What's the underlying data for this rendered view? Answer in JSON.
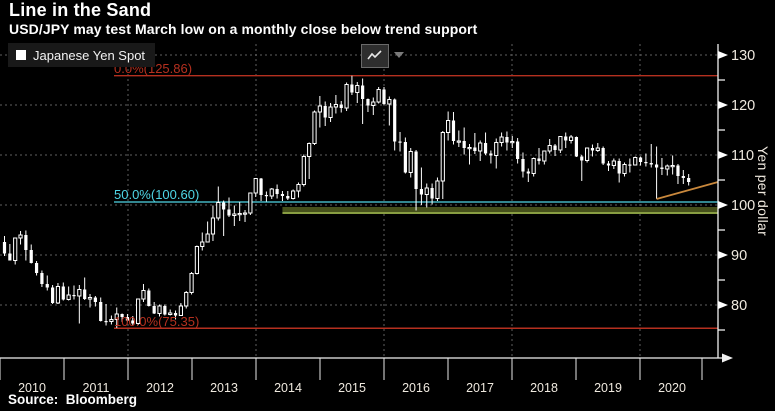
{
  "header": {
    "title": "Line in the Sand",
    "subtitle": "USD/JPY may test March low on a monthly close below trend support"
  },
  "legend": {
    "series_label": "Japanese Yen Spot",
    "swatch_color": "#ffffff"
  },
  "toolbar": {
    "chart_type_icon": "line-chart-icon",
    "dropdown_icon": "caret-down-icon"
  },
  "source": {
    "label": "Source:  Bloomberg"
  },
  "y_axis": {
    "title": "Yen per dollar",
    "major_ticks": [
      130,
      120,
      110,
      100,
      90,
      80
    ],
    "minor_ticks": [
      125,
      115,
      105,
      95,
      85,
      75
    ],
    "range": [
      70,
      132
    ]
  },
  "x_axis": {
    "years": [
      "2010",
      "2011",
      "2012",
      "2013",
      "2014",
      "2015",
      "2016",
      "2017",
      "2018",
      "2019",
      "2020"
    ],
    "grid_every_years": 2
  },
  "chart_data": {
    "type": "candlestick",
    "title": "Line in the Sand",
    "series_name": "Japanese Yen Spot",
    "x_unit": "month",
    "start_month": "2010-01",
    "end_month": "2020-09",
    "ylabel": "Yen per dollar",
    "ylim": [
      70,
      132
    ],
    "grid": true,
    "colors": {
      "candle": "#ffffff",
      "background": "#000000",
      "grid": "#606060"
    },
    "levels": [
      {
        "label": "0.0%(125.86)",
        "value": 125.86,
        "color": "#b5301f"
      },
      {
        "label": "50.0%(100.60)",
        "value": 100.6,
        "color": "#4fd6e6"
      },
      {
        "label": "100.0%(75.35)",
        "value": 75.35,
        "color": "#b5301f"
      }
    ],
    "support_band": {
      "value_top": 99.6,
      "value_bottom": 98.6,
      "edge_value": 98.4,
      "band_color": "#46501b",
      "edge_color": "#b6d158",
      "start_month": "2014-05"
    },
    "trend_line": {
      "start_month": "2020-03",
      "start_value": 101.2,
      "end_value_at_axis": 104.6,
      "color": "#c9883c"
    },
    "candles": [
      [
        92.6,
        93.8,
        89.8,
        90.3
      ],
      [
        90.3,
        92.2,
        88.9,
        88.9
      ],
      [
        88.9,
        93.5,
        88.1,
        93.4
      ],
      [
        93.4,
        94.8,
        92.1,
        94.0
      ],
      [
        94.0,
        94.9,
        88.9,
        91.0
      ],
      [
        91.0,
        92.1,
        88.3,
        88.4
      ],
      [
        88.4,
        88.8,
        85.9,
        86.4
      ],
      [
        86.4,
        86.9,
        83.6,
        84.2
      ],
      [
        84.2,
        85.9,
        82.9,
        83.5
      ],
      [
        83.5,
        84.0,
        80.2,
        80.4
      ],
      [
        80.4,
        84.4,
        80.2,
        83.7
      ],
      [
        83.7,
        84.5,
        80.9,
        81.1
      ],
      [
        81.1,
        83.7,
        80.9,
        82.0
      ],
      [
        82.0,
        83.9,
        81.1,
        81.8
      ],
      [
        81.8,
        84.0,
        76.3,
        83.1
      ],
      [
        83.1,
        85.5,
        81.0,
        81.2
      ],
      [
        81.2,
        82.2,
        79.5,
        81.5
      ],
      [
        81.5,
        81.8,
        79.7,
        80.6
      ],
      [
        80.6,
        81.5,
        76.7,
        76.8
      ],
      [
        76.8,
        80.2,
        75.9,
        76.7
      ],
      [
        76.7,
        77.9,
        76.1,
        77.1
      ],
      [
        77.1,
        79.5,
        75.4,
        78.2
      ],
      [
        78.2,
        78.3,
        76.6,
        77.6
      ],
      [
        77.6,
        78.2,
        76.6,
        76.9
      ],
      [
        76.9,
        77.8,
        76.0,
        76.3
      ],
      [
        76.3,
        81.3,
        76.0,
        81.2
      ],
      [
        81.2,
        84.2,
        80.6,
        82.9
      ],
      [
        82.9,
        83.3,
        79.7,
        79.8
      ],
      [
        79.8,
        80.6,
        78.2,
        78.3
      ],
      [
        78.3,
        80.1,
        77.7,
        79.8
      ],
      [
        79.8,
        80.1,
        77.9,
        78.1
      ],
      [
        78.1,
        79.1,
        77.9,
        78.4
      ],
      [
        78.4,
        78.9,
        77.1,
        77.9
      ],
      [
        77.9,
        80.4,
        77.9,
        79.8
      ],
      [
        79.8,
        82.8,
        79.3,
        82.5
      ],
      [
        82.5,
        86.6,
        82.1,
        86.3
      ],
      [
        86.3,
        91.9,
        86.1,
        91.7
      ],
      [
        91.7,
        94.5,
        90.9,
        92.6
      ],
      [
        92.6,
        96.7,
        92.5,
        94.2
      ],
      [
        94.2,
        99.9,
        92.8,
        97.4
      ],
      [
        97.4,
        103.7,
        96.9,
        100.5
      ],
      [
        100.5,
        100.9,
        93.8,
        99.1
      ],
      [
        99.1,
        101.5,
        97.6,
        97.9
      ],
      [
        97.9,
        99.9,
        95.8,
        98.2
      ],
      [
        98.2,
        100.6,
        96.8,
        98.3
      ],
      [
        98.3,
        99.0,
        96.6,
        98.4
      ],
      [
        98.4,
        102.5,
        98.0,
        102.4
      ],
      [
        102.4,
        105.4,
        101.6,
        105.3
      ],
      [
        105.3,
        105.4,
        100.8,
        102.0
      ],
      [
        102.0,
        102.7,
        100.7,
        101.8
      ],
      [
        101.8,
        103.4,
        101.2,
        103.2
      ],
      [
        103.2,
        104.1,
        101.3,
        102.2
      ],
      [
        102.2,
        102.8,
        100.8,
        101.8
      ],
      [
        101.8,
        102.8,
        101.0,
        101.3
      ],
      [
        101.3,
        103.1,
        101.1,
        102.8
      ],
      [
        102.8,
        104.5,
        101.5,
        104.1
      ],
      [
        104.1,
        110.1,
        103.7,
        109.7
      ],
      [
        109.7,
        112.5,
        105.2,
        112.3
      ],
      [
        112.3,
        118.9,
        112.0,
        118.6
      ],
      [
        118.6,
        121.8,
        115.5,
        119.8
      ],
      [
        119.8,
        120.7,
        115.8,
        117.5
      ],
      [
        117.5,
        120.4,
        116.6,
        119.6
      ],
      [
        119.6,
        122.0,
        118.3,
        120.1
      ],
      [
        120.1,
        120.8,
        118.5,
        119.4
      ],
      [
        119.4,
        124.5,
        118.8,
        124.1
      ],
      [
        124.1,
        125.86,
        122.0,
        122.5
      ],
      [
        122.5,
        124.6,
        120.4,
        123.9
      ],
      [
        123.9,
        125.3,
        116.2,
        121.2
      ],
      [
        121.2,
        121.3,
        118.6,
        119.9
      ],
      [
        119.9,
        121.5,
        118.0,
        120.6
      ],
      [
        120.6,
        123.6,
        120.3,
        123.1
      ],
      [
        123.1,
        123.6,
        120.0,
        120.2
      ],
      [
        120.2,
        121.7,
        115.9,
        121.1
      ],
      [
        121.1,
        121.3,
        110.9,
        112.7
      ],
      [
        112.7,
        114.6,
        110.7,
        112.6
      ],
      [
        112.6,
        113.5,
        106.3,
        106.5
      ],
      [
        106.5,
        111.4,
        105.5,
        110.7
      ],
      [
        110.7,
        111.0,
        98.9,
        103.2
      ],
      [
        103.2,
        107.5,
        100.0,
        102.1
      ],
      [
        102.1,
        104.3,
        99.5,
        103.4
      ],
      [
        103.4,
        104.3,
        100.1,
        101.3
      ],
      [
        101.3,
        105.5,
        100.8,
        104.8
      ],
      [
        104.8,
        114.8,
        101.2,
        114.5
      ],
      [
        114.5,
        118.7,
        112.9,
        116.9
      ],
      [
        116.9,
        118.6,
        112.1,
        112.8
      ],
      [
        112.8,
        114.9,
        111.6,
        112.8
      ],
      [
        112.8,
        115.5,
        110.1,
        111.4
      ],
      [
        111.4,
        112.2,
        108.1,
        111.5
      ],
      [
        111.5,
        114.4,
        110.2,
        110.8
      ],
      [
        110.8,
        112.9,
        108.8,
        112.4
      ],
      [
        112.4,
        114.5,
        110.0,
        110.3
      ],
      [
        110.3,
        110.9,
        108.3,
        109.9
      ],
      [
        109.9,
        113.3,
        107.3,
        112.5
      ],
      [
        112.5,
        114.5,
        111.7,
        113.6
      ],
      [
        113.6,
        114.7,
        110.9,
        112.5
      ],
      [
        112.5,
        113.8,
        111.4,
        112.7
      ],
      [
        112.7,
        113.4,
        108.3,
        109.2
      ],
      [
        109.2,
        110.5,
        105.5,
        106.7
      ],
      [
        106.7,
        107.3,
        104.6,
        106.3
      ],
      [
        106.3,
        109.5,
        105.7,
        109.3
      ],
      [
        109.3,
        111.4,
        108.1,
        108.8
      ],
      [
        108.8,
        110.9,
        108.1,
        110.8
      ],
      [
        110.8,
        113.2,
        110.3,
        111.9
      ],
      [
        111.9,
        112.2,
        109.8,
        111.0
      ],
      [
        111.0,
        113.7,
        110.4,
        113.7
      ],
      [
        113.7,
        114.5,
        111.4,
        112.9
      ],
      [
        112.9,
        114.0,
        112.3,
        113.6
      ],
      [
        113.6,
        113.7,
        109.6,
        109.7
      ],
      [
        109.7,
        110.0,
        104.8,
        108.9
      ],
      [
        108.9,
        111.5,
        108.5,
        111.4
      ],
      [
        111.4,
        112.1,
        109.7,
        110.9
      ],
      [
        110.9,
        112.4,
        110.6,
        111.4
      ],
      [
        111.4,
        111.7,
        108.0,
        108.3
      ],
      [
        108.3,
        108.8,
        106.8,
        107.9
      ],
      [
        107.9,
        109.3,
        107.2,
        108.8
      ],
      [
        108.8,
        109.3,
        104.5,
        106.3
      ],
      [
        106.3,
        108.5,
        105.7,
        108.1
      ],
      [
        108.1,
        109.3,
        106.5,
        108.0
      ],
      [
        108.0,
        109.7,
        107.9,
        109.5
      ],
      [
        109.5,
        109.7,
        107.9,
        108.6
      ],
      [
        108.6,
        110.3,
        107.7,
        108.4
      ],
      [
        108.4,
        112.2,
        107.5,
        108.1
      ],
      [
        108.1,
        111.7,
        101.2,
        107.5
      ],
      [
        107.5,
        109.4,
        106.0,
        107.2
      ],
      [
        107.2,
        108.1,
        105.9,
        107.8
      ],
      [
        107.8,
        109.9,
        106.1,
        107.9
      ],
      [
        107.9,
        108.2,
        104.2,
        105.8
      ],
      [
        105.8,
        107.0,
        104.2,
        105.4
      ],
      [
        105.4,
        106.2,
        103.9,
        104.6
      ]
    ]
  }
}
